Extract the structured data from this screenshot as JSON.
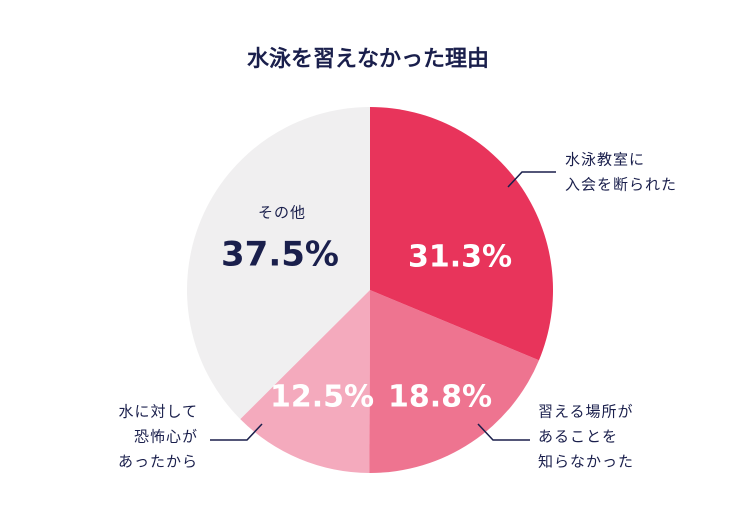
{
  "chart_data": {
    "type": "pie",
    "title": "水泳を習えなかった理由",
    "categories": [
      [
        "水泳教室に",
        "入会を断られた"
      ],
      [
        "習える場所が",
        "あることを",
        "知らなかった"
      ],
      [
        "水に対して",
        "恐怖心が",
        "あったから"
      ],
      [
        "その他"
      ]
    ],
    "values": [
      31.3,
      18.8,
      12.5,
      37.5
    ],
    "value_labels": [
      "31.3%",
      "18.8%",
      "12.5%",
      "37.5%"
    ],
    "colors": [
      "#e8345b",
      "#ee7490",
      "#f4aabd",
      "#f0eff0"
    ]
  }
}
